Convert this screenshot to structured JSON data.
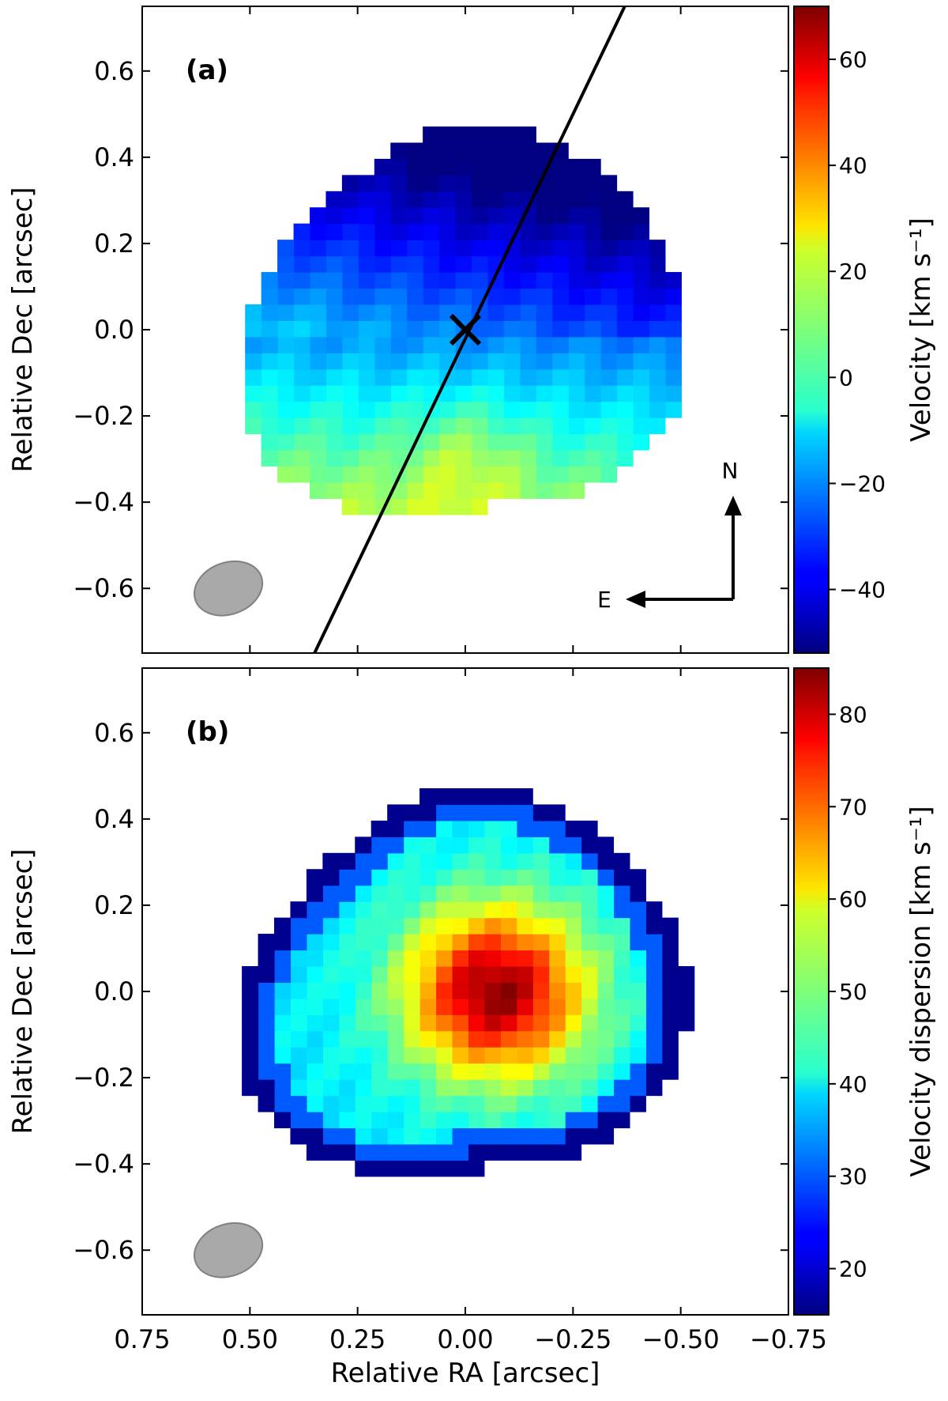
{
  "chart_data": [
    {
      "type": "heatmap",
      "panel_label": "(a)",
      "title": "",
      "xlabel": "",
      "ylabel": "Relative Dec [arcsec]",
      "xlim": [
        0.75,
        -0.75
      ],
      "ylim": [
        -0.75,
        0.75
      ],
      "x_ticks": [
        0.75,
        0.5,
        0.25,
        0.0,
        -0.25,
        -0.5,
        -0.75
      ],
      "y_ticks": [
        -0.6,
        -0.4,
        -0.2,
        0.0,
        0.2,
        0.4,
        0.6
      ],
      "y_tick_labels": [
        "−0.6",
        "−0.4",
        "−0.2",
        "0.0",
        "0.2",
        "0.4",
        "0.6"
      ],
      "colorbar": {
        "label": "Velocity [km s⁻¹]",
        "range": [
          -52,
          70
        ],
        "ticks": [
          -40,
          -20,
          0,
          20,
          40,
          60
        ],
        "tick_labels": [
          "−40",
          "−20",
          "0",
          "20",
          "40",
          "60"
        ],
        "colormap": "jet"
      },
      "field_model": {
        "description": "rotating-disk velocity field",
        "pixel_size": 0.0375,
        "center": [
          0.0,
          0.0
        ],
        "extent_radius": 0.49,
        "values_note": "velocity decreasing from about +35 km/s (south) to about -50 km/s (north-west)"
      },
      "kinematic_axis": {
        "from": [
          0.35,
          -0.75
        ],
        "to": [
          -0.37,
          0.75
        ]
      },
      "center_marker": {
        "x": 0.0,
        "y": 0.0,
        "symbol": "x"
      },
      "beam": {
        "x": 0.55,
        "y": -0.6,
        "major": 0.14,
        "minor": 0.12,
        "color": "#a9a9a9"
      },
      "compass": {
        "north": "N",
        "east": "E"
      }
    },
    {
      "type": "heatmap",
      "panel_label": "(b)",
      "title": "",
      "xlabel": "Relative RA [arcsec]",
      "ylabel": "Relative Dec [arcsec]",
      "xlim": [
        0.75,
        -0.75
      ],
      "ylim": [
        -0.75,
        0.75
      ],
      "x_ticks": [
        0.75,
        0.5,
        0.25,
        0.0,
        -0.25,
        -0.5,
        -0.75
      ],
      "x_tick_labels": [
        "0.75",
        "0.50",
        "0.25",
        "0.00",
        "−0.25",
        "−0.50",
        "−0.75"
      ],
      "y_ticks": [
        -0.6,
        -0.4,
        -0.2,
        0.0,
        0.2,
        0.4,
        0.6
      ],
      "y_tick_labels": [
        "−0.6",
        "−0.4",
        "−0.2",
        "0.0",
        "0.2",
        "0.4",
        "0.6"
      ],
      "colorbar": {
        "label": "Velocity dispersion [km s⁻¹]",
        "range": [
          15,
          85
        ],
        "ticks": [
          20,
          30,
          40,
          50,
          60,
          70,
          80
        ],
        "tick_labels": [
          "20",
          "30",
          "40",
          "50",
          "60",
          "70",
          "80"
        ],
        "colormap": "jet"
      },
      "field_model": {
        "description": "centrally peaked velocity dispersion",
        "pixel_size": 0.0375,
        "center": [
          -0.07,
          0.0
        ],
        "peak": 84,
        "values_note": "peak about 84 km/s near center, falling to about 15 km/s at the edges"
      },
      "beam": {
        "x": 0.55,
        "y": -0.6,
        "major": 0.14,
        "minor": 0.12,
        "color": "#a9a9a9"
      }
    }
  ]
}
